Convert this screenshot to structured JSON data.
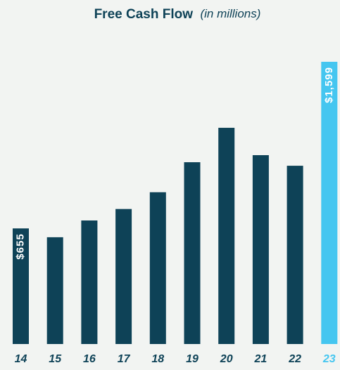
{
  "chart_data": {
    "type": "bar",
    "title": "Free Cash Flow",
    "subtitle": "(in millions)",
    "categories": [
      "14",
      "15",
      "16",
      "17",
      "18",
      "19",
      "20",
      "21",
      "22",
      "23"
    ],
    "values": [
      655,
      605,
      700,
      765,
      860,
      1030,
      1225,
      1070,
      1010,
      1599
    ],
    "value_labels": [
      "$655",
      null,
      null,
      null,
      null,
      null,
      null,
      null,
      null,
      "$1,599"
    ],
    "colors": [
      "#0e4257",
      "#0e4257",
      "#0e4257",
      "#0e4257",
      "#0e4257",
      "#0e4257",
      "#0e4257",
      "#0e4257",
      "#0e4257",
      "#45c6f0"
    ]
  }
}
